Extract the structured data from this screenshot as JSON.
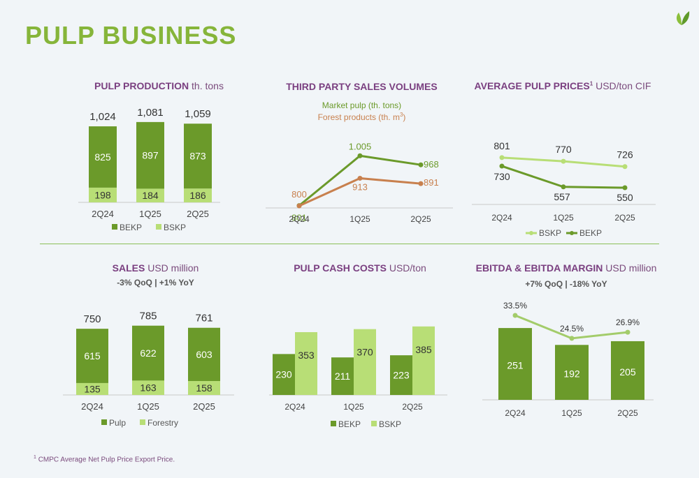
{
  "page": {
    "title": "PULP BUSINESS",
    "footnote": "CMPC Average Net Pulp Price Export Price.",
    "footnote_mark": "1"
  },
  "colors": {
    "dark_green": "#6b9a2a",
    "light_green": "#b8de76",
    "orange": "#c8804e",
    "purple": "#7a3f80",
    "title_green": "#86b53a"
  },
  "icons": {
    "logo": "leaf-logo-icon"
  },
  "chart_data": [
    {
      "id": "pulp_production",
      "type": "bar",
      "stacked": true,
      "title": "PULP PRODUCTION",
      "unit": "th. tons",
      "categories": [
        "2Q24",
        "1Q25",
        "2Q25"
      ],
      "series": [
        {
          "name": "BEKP",
          "values": [
            825,
            897,
            873
          ]
        },
        {
          "name": "BSKP",
          "values": [
            198,
            184,
            186
          ]
        }
      ],
      "totals": [
        1024,
        1081,
        1059
      ],
      "totals_labels": [
        "1,024",
        "1,081",
        "1,059"
      ],
      "legend": "bottom"
    },
    {
      "id": "third_party_sales",
      "type": "line",
      "title": "THIRD PARTY SALES VOLUMES",
      "categories": [
        "2Q24",
        "1Q25",
        "2Q25"
      ],
      "series": [
        {
          "name": "Market pulp (th. tons)",
          "values": [
            801,
            1005,
            968
          ],
          "labels": [
            "801",
            "1.005",
            "968"
          ]
        },
        {
          "name": "Forest products (th. m",
          "name_sup": "3",
          "name_end": ")",
          "values": [
            800,
            913,
            891
          ],
          "labels": [
            "800",
            "913",
            "891"
          ]
        }
      ],
      "legend": "top"
    },
    {
      "id": "avg_pulp_prices",
      "type": "line",
      "title": "AVERAGE PULP PRICES",
      "title_sup": "1",
      "unit": "USD/ton CIF",
      "categories": [
        "2Q24",
        "1Q25",
        "2Q25"
      ],
      "series": [
        {
          "name": "BSKP",
          "values": [
            801,
            770,
            726
          ]
        },
        {
          "name": "BEKP",
          "values": [
            730,
            557,
            550
          ]
        }
      ],
      "legend": "bottom"
    },
    {
      "id": "sales",
      "type": "bar",
      "stacked": true,
      "title": "SALES",
      "unit": "USD million",
      "subtitle": "-3% QoQ | +1% YoY",
      "categories": [
        "2Q24",
        "1Q25",
        "2Q25"
      ],
      "series": [
        {
          "name": "Pulp",
          "values": [
            615,
            622,
            603
          ]
        },
        {
          "name": "Forestry",
          "values": [
            135,
            163,
            158
          ]
        }
      ],
      "totals": [
        750,
        785,
        761
      ],
      "legend": "bottom"
    },
    {
      "id": "pulp_cash_costs",
      "type": "bar",
      "stacked": false,
      "title": "PULP CASH COSTS",
      "unit": "USD/ton",
      "categories": [
        "2Q24",
        "1Q25",
        "2Q25"
      ],
      "series": [
        {
          "name": "BEKP",
          "values": [
            230,
            211,
            223
          ]
        },
        {
          "name": "BSKP",
          "values": [
            353,
            370,
            385
          ]
        }
      ],
      "legend": "bottom"
    },
    {
      "id": "ebitda",
      "type": "bar",
      "title": "EBITDA & EBITDA MARGIN",
      "unit": "USD million",
      "subtitle": "+7% QoQ | -18% YoY",
      "categories": [
        "2Q24",
        "1Q25",
        "2Q25"
      ],
      "series": [
        {
          "name": "EBITDA",
          "values": [
            251,
            192,
            205
          ]
        }
      ],
      "margin": {
        "values": [
          33.5,
          24.5,
          26.9
        ],
        "labels": [
          "33.5%",
          "24.5%",
          "26.9%"
        ]
      }
    }
  ]
}
